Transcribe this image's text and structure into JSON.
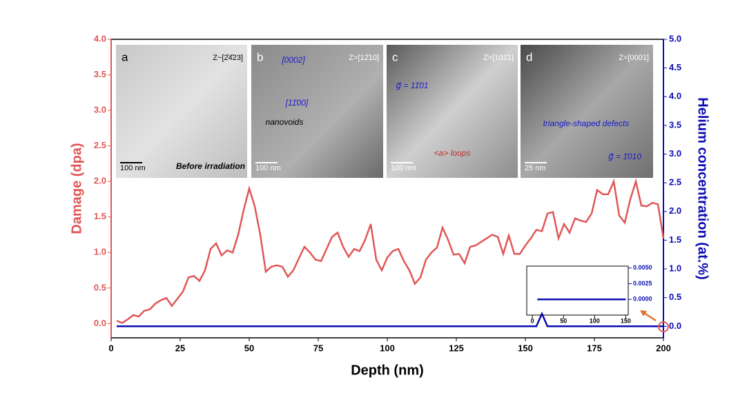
{
  "chart_data": [
    {
      "type": "line",
      "xlabel": "Depth (nm)",
      "ylabel": "Damage (dpa)",
      "y2label": "Helium concentration (at.%)",
      "xlim": [
        0,
        200
      ],
      "xticks": [
        0,
        25,
        50,
        75,
        100,
        125,
        150,
        175,
        200
      ],
      "ylim": [
        -0.2,
        4.0
      ],
      "yticks": [
        {
          "value": 0,
          "label": "0.0"
        },
        {
          "value": 0.5,
          "label": "0.5"
        },
        {
          "value": 1,
          "label": "1.0"
        },
        {
          "value": 1.5,
          "label": "1.5"
        },
        {
          "value": 2,
          "label": "2.0"
        },
        {
          "value": 2.5,
          "label": "2.5"
        },
        {
          "value": 3,
          "label": "3.0"
        },
        {
          "value": 3.5,
          "label": "3.5"
        },
        {
          "value": 4,
          "label": "4.0"
        }
      ],
      "y2lim": [
        -0.2,
        5.0
      ],
      "y2ticks": [
        {
          "value": 0,
          "label": "0.0"
        },
        {
          "value": 0.5,
          "label": "0.5"
        },
        {
          "value": 1,
          "label": "1.0"
        },
        {
          "value": 1.5,
          "label": "1.5"
        },
        {
          "value": 2,
          "label": "2.0"
        },
        {
          "value": 2.5,
          "label": "2.5"
        },
        {
          "value": 3,
          "label": "3.0"
        },
        {
          "value": 3.5,
          "label": "3.5"
        },
        {
          "value": 4,
          "label": "4.0"
        },
        {
          "value": 4.5,
          "label": "4.5"
        },
        {
          "value": 5,
          "label": "5.0"
        }
      ],
      "series": [
        {
          "color": "#e05656",
          "x": [
            2,
            4,
            6,
            8,
            10,
            12,
            14,
            16,
            18,
            20,
            22,
            24,
            26,
            28,
            30,
            32,
            34,
            36,
            38,
            40,
            42,
            44,
            46,
            48,
            50,
            52,
            54,
            56,
            58,
            60,
            62,
            64,
            66,
            68,
            70,
            72,
            74,
            76,
            78,
            80,
            82,
            84,
            86,
            88,
            90,
            92,
            94,
            96,
            98,
            100,
            102,
            104,
            106,
            108,
            110,
            112,
            114,
            116,
            118,
            120,
            122,
            124,
            126,
            128,
            130,
            132,
            134,
            136,
            138,
            140,
            142,
            144,
            146,
            148,
            150,
            152,
            154,
            156,
            158,
            160,
            162,
            164,
            166,
            168,
            170,
            172,
            174,
            176,
            178,
            180,
            182,
            184,
            186,
            188,
            190,
            192,
            194,
            196,
            198,
            200
          ],
          "values": [
            0.04,
            0.01,
            0.06,
            0.12,
            0.1,
            0.18,
            0.2,
            0.28,
            0.33,
            0.36,
            0.25,
            0.35,
            0.45,
            0.65,
            0.67,
            0.6,
            0.75,
            1.05,
            1.13,
            0.96,
            1.03,
            1.0,
            1.25,
            1.6,
            1.9,
            1.65,
            1.25,
            0.73,
            0.8,
            0.82,
            0.8,
            0.66,
            0.75,
            0.92,
            1.08,
            1.0,
            0.9,
            0.88,
            1.05,
            1.22,
            1.28,
            1.08,
            0.94,
            1.05,
            1.02,
            1.18,
            1.4,
            0.9,
            0.75,
            0.93,
            1.02,
            1.05,
            0.88,
            0.75,
            0.56,
            0.65,
            0.9,
            1.0,
            1.07,
            1.35,
            1.18,
            0.97,
            0.98,
            0.85,
            1.08,
            1.1,
            1.15,
            1.2,
            1.25,
            1.22,
            0.98,
            1.24,
            0.98,
            0.98,
            1.1,
            1.2,
            1.32,
            1.3,
            1.55,
            1.57,
            1.2,
            1.4,
            1.28,
            1.48,
            1.45,
            1.43,
            1.55,
            1.88,
            1.82,
            1.82,
            2.0,
            1.52,
            1.42,
            1.75,
            2.0,
            1.66,
            1.65,
            1.7,
            1.68,
            1.2
          ]
        },
        {
          "color": "#0a0ab4",
          "axis": "y2",
          "x": [
            2,
            154,
            156,
            158,
            200
          ],
          "values": [
            0,
            0,
            0.22,
            0,
            0
          ]
        }
      ]
    },
    {
      "type": "line",
      "yside": "right",
      "xlim": [
        -9,
        154
      ],
      "xticks": [
        0,
        50,
        100,
        150
      ],
      "ylim": [
        -0.0025,
        0.0053
      ],
      "yticks": [
        {
          "value": 0,
          "label": "0.0000"
        },
        {
          "value": 0.0025,
          "label": "0.0025"
        },
        {
          "value": 0.005,
          "label": "0.0050"
        }
      ],
      "series": [
        {
          "color": "#0a0ab4",
          "x": [
            8,
            150
          ],
          "values": [
            0,
            0
          ]
        }
      ]
    }
  ],
  "panels": [
    {
      "letter": "a",
      "zone": "Z~[2̄4̄23]",
      "scale": "100 nm",
      "notes": [
        "Before irradiation"
      ]
    },
    {
      "letter": "b",
      "zone": "Z=[12̄10]",
      "scale": "100 nm",
      "notes": [
        "[0002]",
        "[11̄00]",
        "nanovoids"
      ]
    },
    {
      "letter": "c",
      "zone": "Z=[101̄1]",
      "scale": "100 nm",
      "notes": [
        "g⃗ = 11̄01",
        "<a> loops"
      ]
    },
    {
      "letter": "d",
      "zone": "Z=[0001]",
      "scale": "25 nm",
      "notes": [
        "triangle-shaped defects",
        "g⃗ = 1̄010"
      ]
    }
  ]
}
